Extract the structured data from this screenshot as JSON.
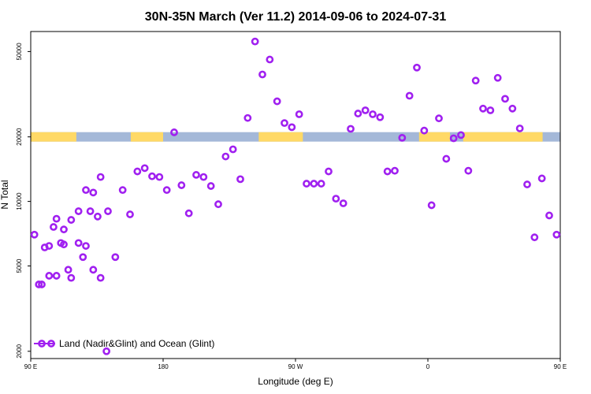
{
  "chart_data": {
    "type": "scatter",
    "title": "30N-35N March (Ver 11.2)   2014-09-06 to 2024-07-31",
    "xlabel": "Longitude (deg E)",
    "ylabel": "N Total",
    "xlim": [
      90,
      450
    ],
    "ylim": [
      1850,
      62000
    ],
    "y_scale": "log",
    "x_ticks": [
      {
        "value": 90,
        "label": "90 E"
      },
      {
        "value": 180,
        "label": "180"
      },
      {
        "value": 270,
        "label": "90 W"
      },
      {
        "value": 360,
        "label": "0"
      },
      {
        "value": 450,
        "label": "90 E"
      },
      {
        "value": 540,
        "label": "180"
      }
    ],
    "y_ticks": [
      {
        "value": 2000,
        "label": "2000"
      },
      {
        "value": 5000,
        "label": "5000"
      },
      {
        "value": 10000,
        "label": "10000"
      },
      {
        "value": 20000,
        "label": "20000"
      },
      {
        "value": 50000,
        "label": "50000"
      }
    ],
    "grid": false,
    "legend_position": "bottom-left",
    "colors": {
      "marker": "#a020f0",
      "land": "#ffd966",
      "ocean": "#a4b8d8"
    },
    "surface_band": {
      "y_value": 20000,
      "land_segments": [
        [
          90,
          121
        ],
        [
          158,
          180
        ],
        [
          245,
          275
        ],
        [
          354,
          375
        ],
        [
          384,
          438
        ],
        [
          535,
          540
        ]
      ]
    },
    "series": [
      {
        "name": "Land (Nadir&Glint) and Ocean (Glint)",
        "marker": "open-circle",
        "x": [
          92.5,
          97.5,
          102.5,
          107.5,
          112.5,
          117.5,
          122.5,
          127.5,
          132.5,
          137.5,
          142.5,
          147.5,
          152.5,
          157.5,
          162.5,
          167.5,
          172.5,
          177.5,
          182.5,
          187.5,
          192.5,
          197.5,
          202.5,
          207.5,
          212.5,
          217.5,
          222.5,
          227.5,
          232.5,
          237.5,
          242.5,
          247.5,
          252.5,
          257.5,
          262.5,
          267.5,
          272.5,
          277.5,
          282.5,
          287.5,
          292.5,
          297.5,
          302.5,
          307.5,
          312.5,
          317.5,
          322.5,
          327.5,
          332.5,
          337.5,
          342.5,
          347.5,
          352.5,
          357.5,
          362.5,
          367.5,
          372.5,
          377.5,
          382.5,
          387.5,
          392.5,
          397.5,
          402.5,
          407.5,
          412.5,
          417.5,
          422.5,
          427.5,
          432.5,
          437.5,
          442.5,
          447.5
        ],
        "y": [
          7000,
          4100,
          6200,
          4500,
          7400,
          8200,
          6400,
          6200,
          4800,
          4400,
          9000,
          5500,
          11300,
          8700,
          13800,
          14300,
          13100,
          13000,
          11300,
          21000,
          11900,
          8800,
          13300,
          13000,
          11800,
          9700,
          16200,
          17500,
          12700,
          24500,
          55700,
          39100,
          45900,
          29300,
          23200,
          22200,
          25500,
          12100,
          12100,
          12100,
          13800,
          10300,
          9800,
          21800,
          25700,
          26600,
          25500,
          24700,
          13800,
          13900,
          19800,
          31100,
          42100,
          21400,
          9600,
          24400,
          15800,
          19700,
          20400,
          13900,
          36600,
          27100,
          26600,
          37700,
          30100,
          27100,
          21900,
          12000,
          6800,
          12800,
          8600,
          7000
        ]
      }
    ],
    "extra_points": [
      {
        "x": 95.5,
        "y": 4100
      },
      {
        "x": 99.5,
        "y": 6100
      },
      {
        "x": 102.5,
        "y": 4500
      },
      {
        "x": 105.5,
        "y": 7600
      },
      {
        "x": 107.5,
        "y": 8300
      },
      {
        "x": 110.5,
        "y": 6400
      },
      {
        "x": 112.5,
        "y": 6300
      },
      {
        "x": 115.5,
        "y": 4800
      },
      {
        "x": 117.5,
        "y": 4400
      },
      {
        "x": 122.5,
        "y": 9000
      },
      {
        "x": 125.5,
        "y": 5500
      },
      {
        "x": 127.5,
        "y": 11300
      },
      {
        "x": 130.5,
        "y": 9000
      },
      {
        "x": 132.5,
        "y": 11000
      },
      {
        "x": 135.5,
        "y": 8500
      },
      {
        "x": 137.5,
        "y": 13000
      },
      {
        "x": 141.5,
        "y": 2000
      }
    ]
  }
}
